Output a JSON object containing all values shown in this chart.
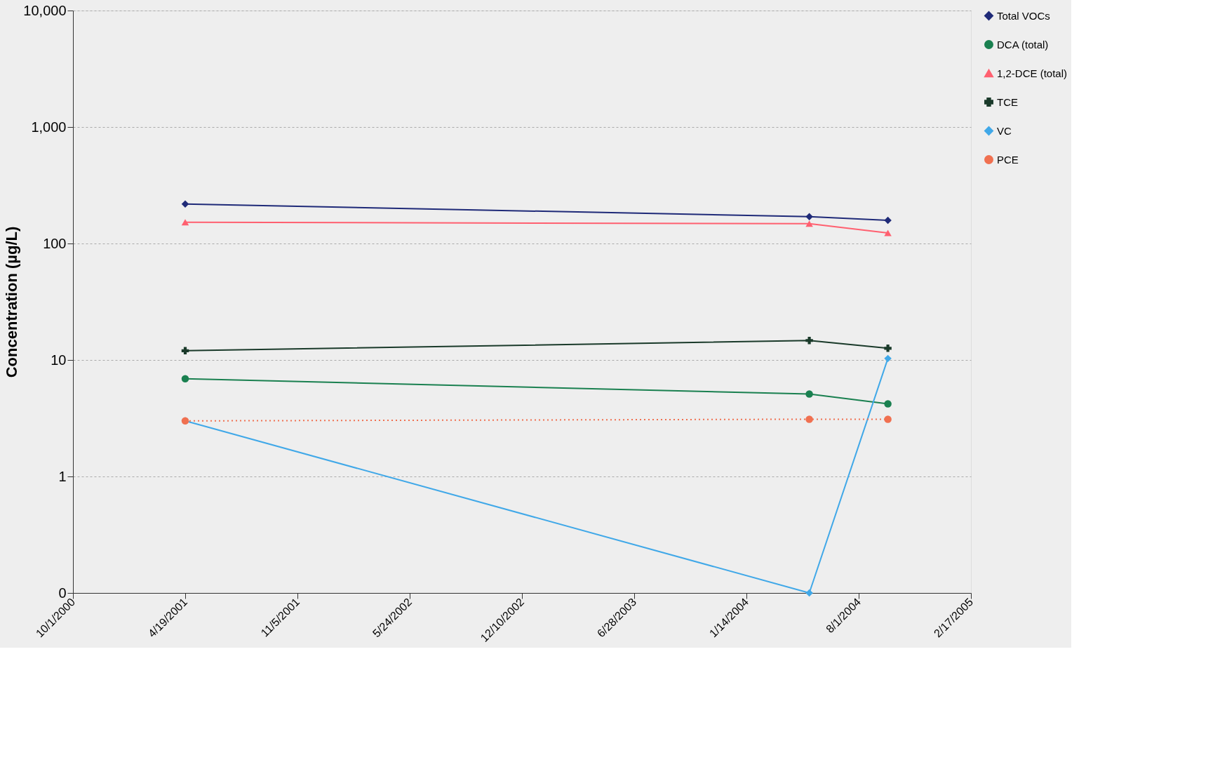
{
  "chart_data": {
    "type": "line",
    "ylabel": "Concentration (µg/L)",
    "x": [
      "2001-04-19",
      "2004-05-05",
      "2004-09-22"
    ],
    "series": [
      {
        "name": "Total VOCs",
        "color": "#1f2a78",
        "marker": "diamond",
        "line_style": "solid",
        "values": [
          218,
          170,
          158
        ]
      },
      {
        "name": "DCA (total)",
        "color": "#1a8050",
        "marker": "circle",
        "line_style": "solid",
        "values": [
          6.9,
          5.1,
          4.2
        ]
      },
      {
        "name": "1,2-DCE (total)",
        "color": "#ff6070",
        "marker": "triangle",
        "line_style": "solid",
        "values": [
          152,
          148,
          123
        ]
      },
      {
        "name": "TCE",
        "color": "#1a3a2a",
        "marker": "cross",
        "line_style": "solid",
        "values": [
          12,
          14.7,
          12.6
        ]
      },
      {
        "name": "VC",
        "color": "#40a8e8",
        "marker": "diamond",
        "line_style": "solid",
        "values": [
          3.0,
          0.1,
          10.3
        ]
      },
      {
        "name": "PCE",
        "color": "#f07050",
        "marker": "circle",
        "line_style": "dotted",
        "values": [
          3.0,
          3.1,
          3.1
        ]
      }
    ],
    "log": "y",
    "ylim": [
      0.1,
      10000
    ],
    "yticks": [
      {
        "value": 0.1,
        "label": "0"
      },
      1,
      10,
      100,
      {
        "value": 1000,
        "label": "1,000"
      },
      {
        "value": 10000,
        "label": "10,000"
      }
    ],
    "xlim": [
      "2000-10-01",
      "2005-02-17"
    ],
    "xticks": [
      {
        "value": "2000-10-01",
        "label": "10/1/2000"
      },
      {
        "value": "2001-04-19",
        "label": "4/19/2001"
      },
      {
        "value": "2001-11-05",
        "label": "11/5/2001"
      },
      {
        "value": "2002-05-24",
        "label": "5/24/2002"
      },
      {
        "value": "2002-12-10",
        "label": "12/10/2002"
      },
      {
        "value": "2003-06-28",
        "label": "6/28/2003"
      },
      {
        "value": "2004-01-14",
        "label": "1/14/2004"
      },
      {
        "value": "2004-08-01",
        "label": "8/1/2004"
      },
      {
        "value": "2005-02-17",
        "label": "2/17/2005"
      }
    ],
    "grid": "y",
    "legend": "right"
  }
}
